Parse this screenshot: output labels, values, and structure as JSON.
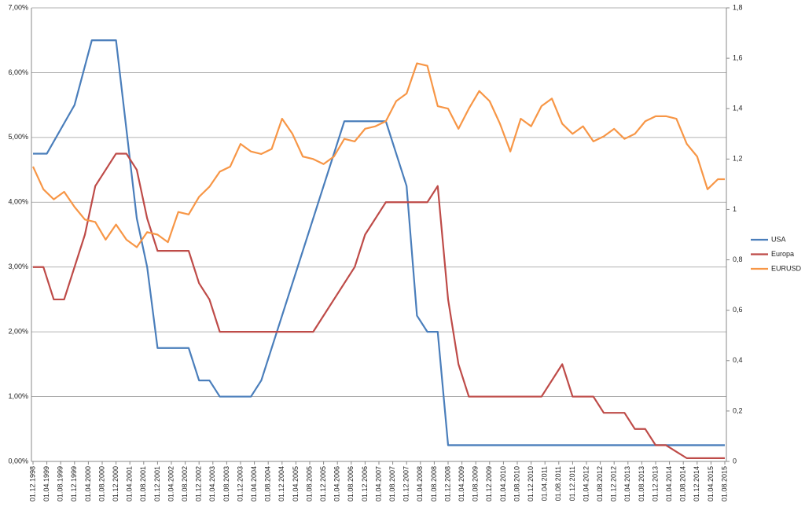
{
  "chart_data": {
    "type": "line",
    "xticks": [
      "01.12.1998",
      "01.04.1999",
      "01.08.1999",
      "01.12.1999",
      "01.04.2000",
      "01.08.2000",
      "01.12.2000",
      "01.04.2001",
      "01.08.2001",
      "01.12.2001",
      "01.04.2002",
      "01.08.2002",
      "01.12.2002",
      "01.04.2003",
      "01.08.2003",
      "01.12.2003",
      "01.04.2004",
      "01.08.2004",
      "01.12.2004",
      "01.04.2005",
      "01.08.2005",
      "01.12.2005",
      "01.04.2006",
      "01.08.2006",
      "01.12.2006",
      "01.04.2007",
      "01.08.2007",
      "01.12.2007",
      "01.04.2008",
      "01.08.2008",
      "01.12.2008",
      "01.04.2009",
      "01.08.2009",
      "01.12.2009",
      "01.04.2010",
      "01.08.2010",
      "01.12.2010",
      "01.04.2011",
      "01.08.2011",
      "01.12.2011",
      "01.04.2012",
      "01.08.2012",
      "01.12.2012",
      "01.04.2013",
      "01.08.2013",
      "01.12.2013",
      "01.04.2014",
      "01.08.2014",
      "01.12.2014",
      "01.04.2015",
      "01.08.2015"
    ],
    "ylim": [
      0,
      7
    ],
    "yticks": [
      {
        "value": 0,
        "label": "0,00%"
      },
      {
        "value": 1,
        "label": "1,00%"
      },
      {
        "value": 2,
        "label": "2,00%"
      },
      {
        "value": 3,
        "label": "3,00%"
      },
      {
        "value": 4,
        "label": "4,00%"
      },
      {
        "value": 5,
        "label": "5,00%"
      },
      {
        "value": 6,
        "label": "6,00%"
      },
      {
        "value": 7,
        "label": "7,00%"
      }
    ],
    "y2lim": [
      0,
      1.8
    ],
    "y2ticks": [
      0,
      {
        "value": 0.2,
        "label": "0,2"
      },
      {
        "value": 0.4,
        "label": "0,4"
      },
      {
        "value": 0.6,
        "label": "0,6"
      },
      {
        "value": 0.8,
        "label": "0,8"
      },
      1,
      {
        "value": 1.2,
        "label": "1,2"
      },
      {
        "value": 1.4,
        "label": "1,4"
      },
      {
        "value": 1.6,
        "label": "1,6"
      },
      {
        "value": 1.8,
        "label": "1,8"
      }
    ],
    "grid": true,
    "legend": "right",
    "series": [
      {
        "name": "USA",
        "color": "#4a7ebb",
        "axis": "y",
        "x": [
          "01.12.1998",
          "01.04.1999",
          "01.12.1999",
          "01.05.2000",
          "01.12.2000",
          "01.06.2001",
          "01.09.2001",
          "01.12.2001",
          "01.09.2002",
          "01.12.2002",
          "01.03.2003",
          "01.06.2003",
          "01.03.2004",
          "01.06.2004",
          "01.06.2006",
          "01.06.2007",
          "01.12.2007",
          "01.03.2008",
          "01.06.2008",
          "01.09.2008",
          "01.12.2008",
          "01.08.2015"
        ],
        "values": [
          4.75,
          4.75,
          5.5,
          6.5,
          6.5,
          3.75,
          3.0,
          1.75,
          1.75,
          1.25,
          1.25,
          1.0,
          1.0,
          1.25,
          5.25,
          5.25,
          4.25,
          2.25,
          2.0,
          2.0,
          0.25,
          0.25
        ]
      },
      {
        "name": "Europa",
        "color": "#be4b48",
        "axis": "y",
        "x": [
          "01.12.1998",
          "01.03.1999",
          "01.06.1999",
          "01.09.1999",
          "01.03.2000",
          "01.06.2000",
          "01.12.2000",
          "01.03.2001",
          "01.06.2001",
          "01.09.2001",
          "01.12.2001",
          "01.09.2002",
          "01.12.2002",
          "01.03.2003",
          "01.06.2003",
          "01.09.2005",
          "01.09.2006",
          "01.12.2006",
          "01.06.2007",
          "01.06.2008",
          "01.09.2008",
          "01.12.2008",
          "01.03.2009",
          "01.06.2009",
          "01.03.2011",
          "01.09.2011",
          "01.12.2011",
          "01.06.2012",
          "01.09.2012",
          "01.03.2013",
          "01.06.2013",
          "01.09.2013",
          "01.12.2013",
          "01.03.2014",
          "01.06.2014",
          "01.09.2014",
          "01.08.2015"
        ],
        "values": [
          3.0,
          3.0,
          2.5,
          2.5,
          3.5,
          4.25,
          4.75,
          4.75,
          4.5,
          3.75,
          3.25,
          3.25,
          2.75,
          2.5,
          2.0,
          2.0,
          3.0,
          3.5,
          4.0,
          4.0,
          4.25,
          2.5,
          1.5,
          1.0,
          1.0,
          1.5,
          1.0,
          1.0,
          0.75,
          0.75,
          0.5,
          0.5,
          0.25,
          0.25,
          0.15,
          0.05,
          0.05
        ]
      },
      {
        "name": "EURUSD",
        "color": "#f79646",
        "axis": "y2",
        "x": [
          "01.12.1998",
          "01.03.1999",
          "01.06.1999",
          "01.09.1999",
          "01.12.1999",
          "01.03.2000",
          "01.06.2000",
          "01.09.2000",
          "01.12.2000",
          "01.03.2001",
          "01.06.2001",
          "01.09.2001",
          "01.12.2001",
          "01.03.2002",
          "01.06.2002",
          "01.09.2002",
          "01.12.2002",
          "01.03.2003",
          "01.06.2003",
          "01.09.2003",
          "01.12.2003",
          "01.03.2004",
          "01.06.2004",
          "01.09.2004",
          "01.12.2004",
          "01.03.2005",
          "01.06.2005",
          "01.09.2005",
          "01.12.2005",
          "01.03.2006",
          "01.06.2006",
          "01.09.2006",
          "01.12.2006",
          "01.03.2007",
          "01.06.2007",
          "01.09.2007",
          "01.12.2007",
          "01.03.2008",
          "01.06.2008",
          "01.09.2008",
          "01.12.2008",
          "01.03.2009",
          "01.06.2009",
          "01.09.2009",
          "01.12.2009",
          "01.03.2010",
          "01.06.2010",
          "01.09.2010",
          "01.12.2010",
          "01.03.2011",
          "01.06.2011",
          "01.09.2011",
          "01.12.2011",
          "01.03.2012",
          "01.06.2012",
          "01.09.2012",
          "01.12.2012",
          "01.03.2013",
          "01.06.2013",
          "01.09.2013",
          "01.12.2013",
          "01.03.2014",
          "01.06.2014",
          "01.09.2014",
          "01.12.2014",
          "01.03.2015",
          "01.06.2015",
          "01.08.2015"
        ],
        "values": [
          1.17,
          1.08,
          1.04,
          1.07,
          1.01,
          0.96,
          0.95,
          0.88,
          0.94,
          0.88,
          0.85,
          0.91,
          0.9,
          0.87,
          0.99,
          0.98,
          1.05,
          1.09,
          1.15,
          1.17,
          1.26,
          1.23,
          1.22,
          1.24,
          1.36,
          1.3,
          1.21,
          1.2,
          1.18,
          1.21,
          1.28,
          1.27,
          1.32,
          1.33,
          1.35,
          1.43,
          1.46,
          1.58,
          1.57,
          1.41,
          1.4,
          1.32,
          1.4,
          1.47,
          1.43,
          1.34,
          1.23,
          1.36,
          1.33,
          1.41,
          1.44,
          1.34,
          1.3,
          1.33,
          1.27,
          1.29,
          1.32,
          1.28,
          1.3,
          1.35,
          1.37,
          1.37,
          1.36,
          1.26,
          1.21,
          1.08,
          1.12,
          1.12
        ]
      }
    ]
  }
}
